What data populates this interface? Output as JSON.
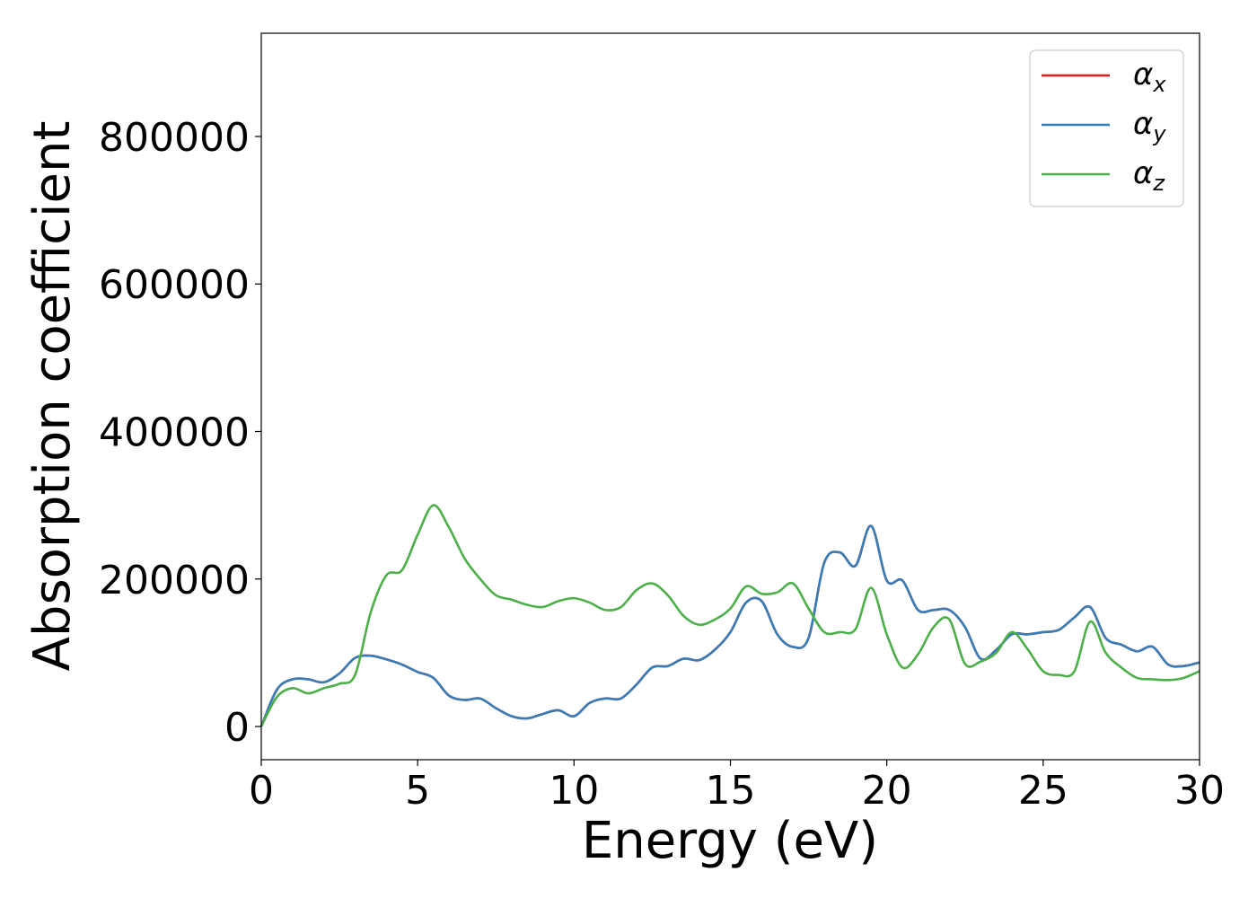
{
  "chart_data": {
    "type": "line",
    "title": "",
    "xlabel": "Energy (eV)",
    "ylabel": "Absorption coefficient",
    "xlim": [
      0,
      30
    ],
    "ylim": [
      -45000,
      940000
    ],
    "x_ticks": [
      0,
      5,
      10,
      15,
      20,
      25,
      30
    ],
    "x_tick_labels": [
      "0",
      "5",
      "10",
      "15",
      "20",
      "25",
      "30"
    ],
    "y_ticks": [
      0,
      200000,
      400000,
      600000,
      800000
    ],
    "y_tick_labels": [
      "0",
      "200000",
      "400000",
      "600000",
      "800000"
    ],
    "grid": false,
    "legend_position": "top-right",
    "series": [
      {
        "name": "α_x",
        "label_base": "α",
        "label_sub": "x",
        "color": "#e41a1c",
        "x": [
          0,
          0.5,
          1,
          1.5,
          2,
          2.5,
          3,
          3.5,
          4,
          4.5,
          5,
          5.5,
          6,
          6.5,
          7,
          7.5,
          8,
          8.5,
          9,
          9.5,
          10,
          10.5,
          11,
          11.5,
          12,
          12.5,
          13,
          13.5,
          14,
          14.5,
          15,
          15.5,
          16,
          16.5,
          17,
          17.5,
          18,
          18.5,
          19,
          19.5,
          20,
          20.5,
          21,
          21.5,
          22,
          22.5,
          23,
          23.5,
          24,
          24.5,
          25,
          25.5,
          26,
          26.5,
          27,
          27.5,
          28,
          28.5,
          29,
          29.5,
          30
        ],
        "y": [
          0,
          50000,
          64000,
          64000,
          60000,
          72000,
          93000,
          96000,
          91000,
          84000,
          74000,
          66000,
          42000,
          36000,
          38000,
          25000,
          14000,
          11000,
          17000,
          22000,
          14000,
          32000,
          38000,
          38000,
          57000,
          80000,
          82000,
          92000,
          90000,
          104000,
          128000,
          168000,
          170000,
          125000,
          108000,
          120000,
          222000,
          236000,
          218000,
          272000,
          198000,
          198000,
          158000,
          158000,
          158000,
          135000,
          92000,
          104000,
          125000,
          125000,
          128000,
          131000,
          148000,
          162000,
          120000,
          111000,
          102000,
          108000,
          84000,
          82000,
          87000
        ]
      },
      {
        "name": "α_y",
        "label_base": "α",
        "label_sub": "y",
        "color": "#377eb8",
        "x": [
          0,
          0.5,
          1,
          1.5,
          2,
          2.5,
          3,
          3.5,
          4,
          4.5,
          5,
          5.5,
          6,
          6.5,
          7,
          7.5,
          8,
          8.5,
          9,
          9.5,
          10,
          10.5,
          11,
          11.5,
          12,
          12.5,
          13,
          13.5,
          14,
          14.5,
          15,
          15.5,
          16,
          16.5,
          17,
          17.5,
          18,
          18.5,
          19,
          19.5,
          20,
          20.5,
          21,
          21.5,
          22,
          22.5,
          23,
          23.5,
          24,
          24.5,
          25,
          25.5,
          26,
          26.5,
          27,
          27.5,
          28,
          28.5,
          29,
          29.5,
          30
        ],
        "y": [
          0,
          50000,
          64000,
          64000,
          60000,
          72000,
          93000,
          96000,
          91000,
          84000,
          74000,
          66000,
          42000,
          36000,
          38000,
          25000,
          14000,
          11000,
          17000,
          22000,
          14000,
          32000,
          38000,
          38000,
          57000,
          80000,
          82000,
          92000,
          90000,
          104000,
          128000,
          168000,
          170000,
          125000,
          108000,
          120000,
          222000,
          236000,
          218000,
          272000,
          198000,
          198000,
          158000,
          158000,
          158000,
          135000,
          92000,
          104000,
          125000,
          125000,
          128000,
          131000,
          148000,
          162000,
          120000,
          111000,
          102000,
          108000,
          84000,
          82000,
          87000
        ]
      },
      {
        "name": "α_z",
        "label_base": "α",
        "label_sub": "z",
        "color": "#4daf4a",
        "x": [
          0,
          0.5,
          1,
          1.5,
          2,
          2.5,
          3,
          3.5,
          4,
          4.5,
          5,
          5.5,
          6,
          6.5,
          7,
          7.5,
          8,
          8.5,
          9,
          9.5,
          10,
          10.5,
          11,
          11.5,
          12,
          12.5,
          13,
          13.5,
          14,
          14.5,
          15,
          15.5,
          16,
          16.5,
          17,
          17.5,
          18,
          18.5,
          19,
          19.5,
          20,
          20.5,
          21,
          21.5,
          22,
          22.5,
          23,
          23.5,
          24,
          24.5,
          25,
          25.5,
          26,
          26.5,
          27,
          27.5,
          28,
          28.5,
          29,
          29.5,
          30
        ],
        "y": [
          0,
          40000,
          52000,
          45000,
          52000,
          58000,
          70000,
          155000,
          205000,
          212000,
          260000,
          300000,
          270000,
          228000,
          200000,
          178000,
          172000,
          165000,
          162000,
          170000,
          174000,
          168000,
          158000,
          162000,
          185000,
          194000,
          178000,
          150000,
          138000,
          145000,
          160000,
          190000,
          180000,
          182000,
          194000,
          160000,
          128000,
          128000,
          132000,
          188000,
          125000,
          80000,
          98000,
          135000,
          145000,
          85000,
          88000,
          100000,
          128000,
          105000,
          75000,
          70000,
          75000,
          142000,
          100000,
          80000,
          66000,
          64000,
          63000,
          66000,
          75000
        ]
      }
    ]
  }
}
